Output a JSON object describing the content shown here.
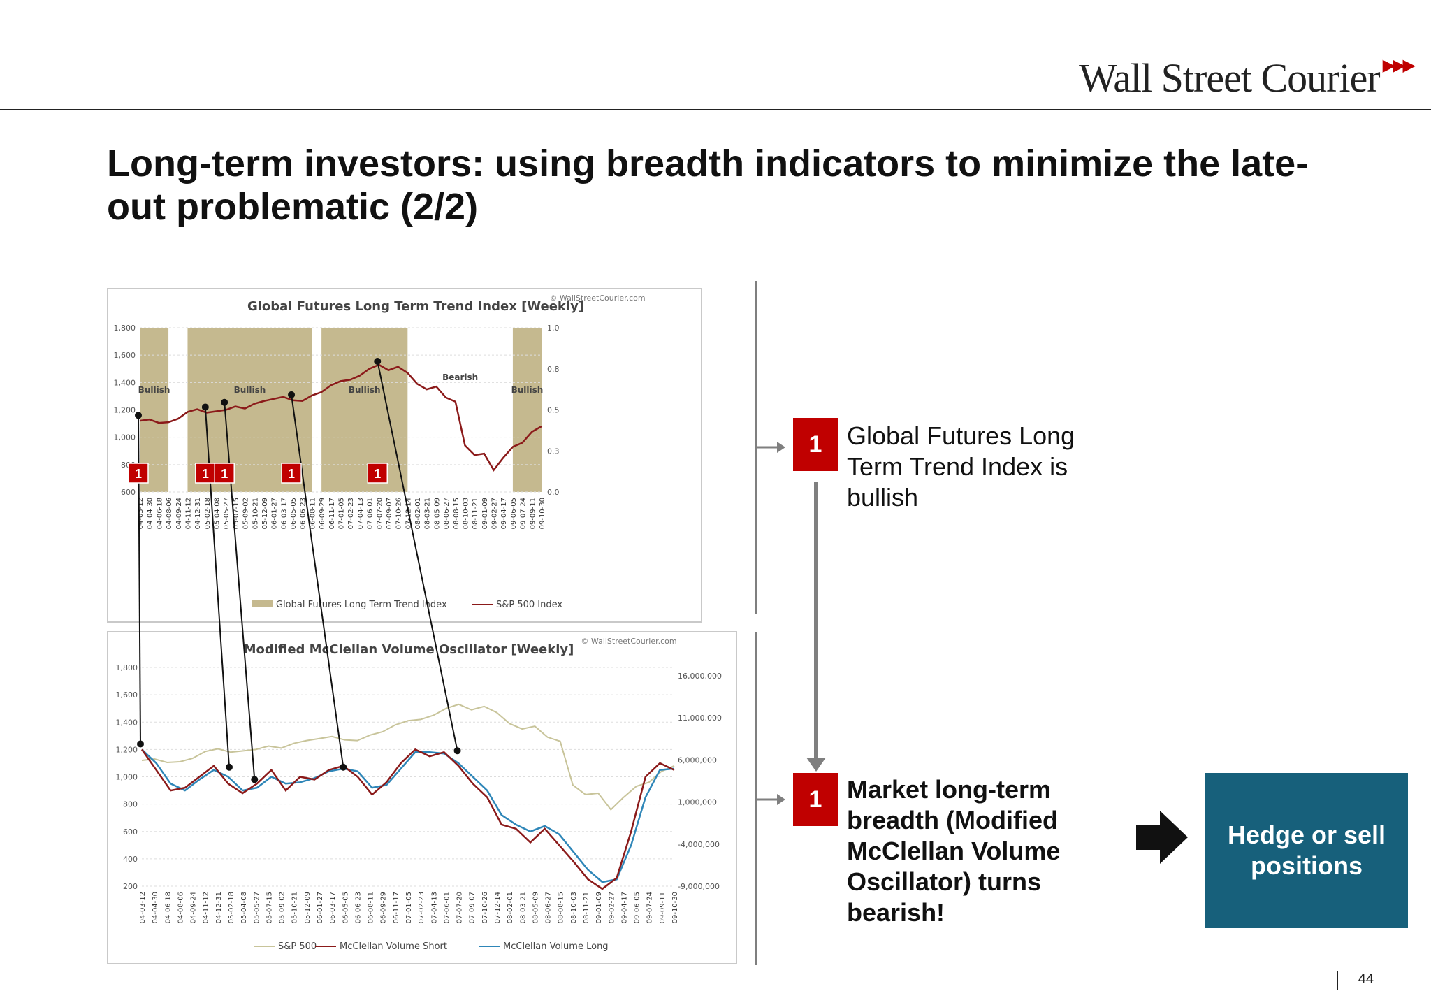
{
  "header": {
    "brand": "Wall Street Courier",
    "brand_arrows": "▶▶▶"
  },
  "slide": {
    "title": "Long-term investors: using breadth indicators to minimize the late-out problematic (2/2)",
    "page_number": "44"
  },
  "steps": [
    {
      "badge": "1",
      "text": "Global Futures Long Term Trend Index is bullish"
    },
    {
      "badge": "1",
      "text": "Market long-term breadth (Modified McClellan Volume Oscillator) turns bearish!"
    }
  ],
  "cta": {
    "label": "Hedge or sell positions"
  },
  "colors": {
    "accent_red": "#c00000",
    "cta_teal": "#17607b",
    "bull_band": "#c5b98f",
    "sp500_red": "#8b1a1a",
    "mcc_long_blue": "#2e86b8",
    "sp500_olive": "#c8c49a"
  },
  "icons": {
    "arrow": "right-arrow-icon"
  },
  "chart_data": [
    {
      "type": "line",
      "title": "Global Futures Long Term Trend Index [Weekly]",
      "watermark": "© WallStreetCourier.com",
      "y_left_ticks": [
        "1,800",
        "1,600",
        "1,400",
        "1,200",
        "1,000",
        "800",
        "600"
      ],
      "y_right_ticks": [
        "1.0",
        "0.8",
        "0.5",
        "0.3",
        "0.0"
      ],
      "ylim_left": [
        600,
        1800
      ],
      "x_ticks": [
        "04-03-12",
        "04-04-30",
        "04-06-18",
        "04-08-06",
        "04-09-24",
        "04-11-12",
        "04-12-31",
        "05-02-18",
        "05-04-08",
        "05-05-27",
        "05-07-15",
        "05-09-02",
        "05-10-21",
        "05-12-09",
        "06-01-27",
        "06-03-17",
        "06-05-05",
        "06-06-23",
        "06-08-11",
        "06-09-29",
        "06-11-17",
        "07-01-05",
        "07-02-23",
        "07-04-13",
        "07-06-01",
        "07-07-20",
        "07-09-07",
        "07-10-26",
        "07-12-14",
        "08-02-01",
        "08-03-21",
        "08-05-09",
        "08-06-27",
        "08-08-15",
        "08-10-03",
        "08-11-21",
        "09-01-09",
        "09-02-27",
        "09-04-17",
        "09-06-05",
        "09-07-24",
        "09-09-11",
        "09-10-30"
      ],
      "regime_bands": [
        {
          "label": "Bullish",
          "from": "04-03-12",
          "to": "04-08-06"
        },
        {
          "label": "Bullish",
          "from": "04-11-12",
          "to": "06-08-11"
        },
        {
          "label": "Bullish",
          "from": "06-09-29",
          "to": "07-12-14"
        },
        {
          "label": "Bearish",
          "from": "07-12-14",
          "to": "09-06-05"
        },
        {
          "label": "Bullish",
          "from": "09-06-05",
          "to": "09-10-30"
        }
      ],
      "series": [
        {
          "name": "Global Futures Long Term Trend Index"
        },
        {
          "name": "S&P 500 Index",
          "values": [
            1120,
            1130,
            1105,
            1110,
            1135,
            1185,
            1205,
            1180,
            1190,
            1200,
            1225,
            1210,
            1245,
            1265,
            1280,
            1295,
            1270,
            1265,
            1305,
            1330,
            1380,
            1410,
            1420,
            1450,
            1500,
            1530,
            1490,
            1515,
            1470,
            1390,
            1350,
            1370,
            1290,
            1260,
            940,
            870,
            880,
            760,
            850,
            930,
            960,
            1040,
            1080
          ]
        }
      ],
      "markers": [
        {
          "label": "1",
          "x": "04-03-12",
          "y": 1150
        },
        {
          "label": "1",
          "x": "05-02-18",
          "y": 1210
        },
        {
          "label": "1",
          "x": "05-05-27",
          "y": 1245
        },
        {
          "label": "1",
          "x": "06-05-05",
          "y": 1300
        },
        {
          "label": "1",
          "x": "07-07-20",
          "y": 1545
        }
      ]
    },
    {
      "type": "line",
      "title": "Modified McClellan Volume Oscillator [Weekly]",
      "watermark": "© WallStreetCourier.com",
      "y_left_ticks": [
        "1,800",
        "1,600",
        "1,400",
        "1,200",
        "1,000",
        "800",
        "600",
        "400",
        "200"
      ],
      "y_right_ticks": [
        "16,000,000",
        "11,000,000",
        "6,000,000",
        "1,000,000",
        "-4,000,000",
        "-9,000,000"
      ],
      "ylim_left": [
        200,
        1800
      ],
      "series": [
        {
          "name": "S&P 500"
        },
        {
          "name": "McClellan Volume Short",
          "values": [
            1200,
            1050,
            900,
            920,
            1000,
            1080,
            950,
            880,
            950,
            1050,
            900,
            1000,
            980,
            1050,
            1080,
            1000,
            870,
            960,
            1100,
            1200,
            1150,
            1180,
            1080,
            950,
            850,
            650,
            620,
            520,
            620,
            500,
            380,
            250,
            180,
            260,
            600,
            1000,
            1100,
            1050
          ]
        },
        {
          "name": "McClellan Volume Long",
          "values": [
            1200,
            1100,
            950,
            900,
            980,
            1050,
            1000,
            900,
            920,
            1000,
            950,
            960,
            990,
            1040,
            1060,
            1040,
            920,
            940,
            1060,
            1180,
            1180,
            1170,
            1100,
            1000,
            900,
            720,
            650,
            600,
            640,
            580,
            450,
            320,
            230,
            250,
            500,
            850,
            1050,
            1060
          ]
        }
      ],
      "markers": [
        {
          "x": "04-03-12",
          "y": 1230
        },
        {
          "x": "05-02-18",
          "y": 1060
        },
        {
          "x": "05-05-27",
          "y": 970
        },
        {
          "x": "06-05-05",
          "y": 1060
        },
        {
          "x": "07-07-20",
          "y": 1180
        }
      ]
    }
  ]
}
